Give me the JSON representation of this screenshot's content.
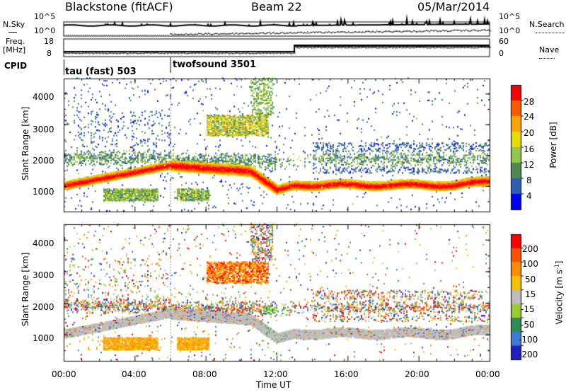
{
  "header": {
    "station": "Blackstone (fitACF)",
    "beam": "Beam 22",
    "date": "05/Mar/2014"
  },
  "top_panels": {
    "nsky_label": "N.Sky",
    "nsky_ticks": [
      "10^5",
      "10^0"
    ],
    "nsearch_label": "N.Search",
    "nsearch_ticks": [
      "10^5",
      "10^0"
    ],
    "freq_label_1": "Freq.",
    "freq_label_2": "[MHz]",
    "freq_ticks": [
      "18",
      "8"
    ],
    "nave_label": "Nave",
    "nave_ticks": [
      "60",
      "0"
    ],
    "cpid_label": "CPID",
    "cpid_modes": [
      {
        "name": "tau (fast) 503",
        "start_hour": 0
      },
      {
        "name": "twofsound 3501",
        "start_hour": 6
      }
    ]
  },
  "chart_data": [
    {
      "type": "heatmap",
      "name": "power",
      "ylabel": "Slant Range [km]",
      "yticks": [
        1000,
        2000,
        3000,
        4000
      ],
      "ylim": [
        180,
        4500
      ],
      "xlim": [
        0,
        24
      ],
      "colorbar_label": "Power [dB]",
      "colorbar_ticks": [
        "28",
        "24",
        "20",
        "16",
        "12",
        "8",
        "4"
      ],
      "colorbar_colors": [
        "#0000ff",
        "#2e5db5",
        "#4e8a4e",
        "#8fc84a",
        "#e8dc00",
        "#ffa500",
        "#ff5a00",
        "#ff0000"
      ],
      "echo_regions": [
        {
          "desc": "main ground scatter band",
          "points": [
            [
              0,
              1000
            ],
            [
              2,
              1080
            ],
            [
              4,
              1300
            ],
            [
              6,
              1650
            ],
            [
              10,
              1400
            ],
            [
              11,
              1300
            ],
            [
              12,
              900
            ],
            [
              14,
              1050
            ],
            [
              18,
              1000
            ],
            [
              22,
              1000
            ],
            [
              24,
              1150
            ]
          ]
        },
        {
          "desc": "upper scatter",
          "points": [
            [
              1,
              2000
            ],
            [
              4,
              1900
            ],
            [
              6,
              1800
            ],
            [
              9,
              1800
            ],
            [
              12,
              1700
            ],
            [
              16,
              1700
            ],
            [
              20,
              1750
            ],
            [
              24,
              1900
            ]
          ]
        },
        {
          "desc": "far range echoes",
          "points": [
            [
              8,
              3000
            ],
            [
              10,
              3000
            ],
            [
              11,
              3050
            ]
          ]
        }
      ]
    },
    {
      "type": "heatmap",
      "name": "velocity",
      "ylabel": "Slant Range [km]",
      "yticks": [
        1000,
        2000,
        3000,
        4000
      ],
      "ylim": [
        180,
        4500
      ],
      "xlim": [
        0,
        24
      ],
      "xticks": [
        "00:00",
        "04:00",
        "08:00",
        "12:00",
        "16:00",
        "20:00",
        "00:00"
      ],
      "xlabel": "Time UT",
      "colorbar_label": "Velocity [m s^-1]",
      "colorbar_ticks": [
        "200",
        "100",
        "50",
        "15",
        "-15",
        "-50",
        "-100",
        "-200"
      ],
      "colorbar_colors": [
        "#2020c0",
        "#3c7bd6",
        "#2e8b57",
        "#9acd32",
        "#bebebe",
        "#f5c000",
        "#ff8c00",
        "#ff5000",
        "#ff0000"
      ]
    }
  ]
}
